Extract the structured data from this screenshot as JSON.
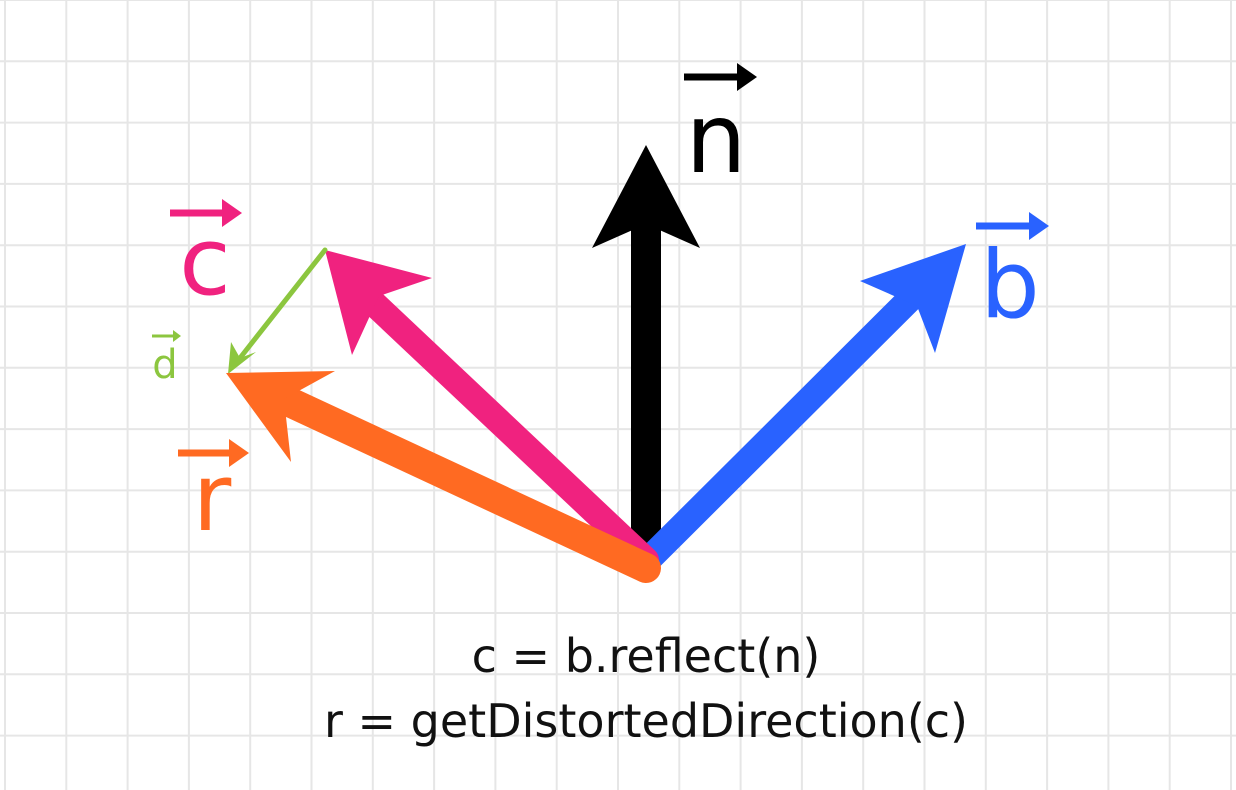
{
  "diagram": {
    "vectors": [
      {
        "id": "n",
        "label": "n",
        "color": "#000000"
      },
      {
        "id": "b",
        "label": "b",
        "color": "#2962ff"
      },
      {
        "id": "c",
        "label": "c",
        "color": "#f0227f"
      },
      {
        "id": "r",
        "label": "r",
        "color": "#ff6a22"
      },
      {
        "id": "d",
        "label": "d",
        "color": "#8cc63f"
      }
    ],
    "caption": {
      "line1": "c = b.reflect(n)",
      "line2": "r = getDistortedDirection(c)"
    },
    "grid_color": "#e6e6e6"
  }
}
